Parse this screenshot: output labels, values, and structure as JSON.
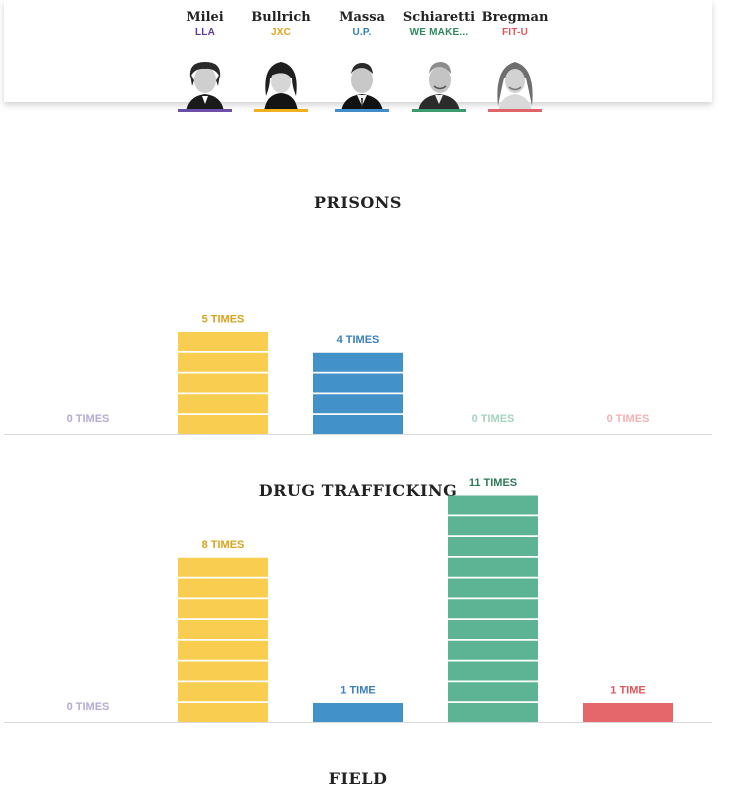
{
  "candidates": [
    {
      "name": "Milei",
      "party": "LLA",
      "color": "#6b4fa8",
      "portrait_icon": "milei-portrait-icon"
    },
    {
      "name": "Bullrich",
      "party": "JXC",
      "color": "#f2b01e",
      "portrait_icon": "bullrich-portrait-icon"
    },
    {
      "name": "Massa",
      "party": "U.P.",
      "color": "#3f8ecb",
      "portrait_icon": "massa-portrait-icon"
    },
    {
      "name": "Schiaretti",
      "party": "WE MAKE...",
      "color": "#3d9a6f",
      "portrait_icon": "schiaretti-portrait-icon"
    },
    {
      "name": "Bregman",
      "party": "FIT-U",
      "color": "#e0636a",
      "portrait_icon": "bregman-portrait-icon"
    }
  ],
  "sections": [
    {
      "title": "PRISONS"
    },
    {
      "title": "DRUG TRAFFICKING"
    },
    {
      "title": "FIELD"
    }
  ],
  "chart_data": [
    {
      "type": "bar",
      "title": "PRISONS",
      "categories": [
        "Milei",
        "Bullrich",
        "Massa",
        "Schiarretti",
        "Bregman"
      ],
      "values": [
        0,
        5,
        4,
        0,
        0
      ],
      "labels": [
        "0 TIMES",
        "5 TIMES",
        "4 TIMES",
        "0 TIMES",
        "0 TIMES"
      ],
      "colors": [
        "#6b4fa8",
        "#f9cd4f",
        "#4391c9",
        "#5db494",
        "#e5666b"
      ],
      "label_colors": [
        "#b6aad4",
        "#d9a21c",
        "#3a7fb8",
        "#a6d3bf",
        "#f1b2b4"
      ]
    },
    {
      "type": "bar",
      "title": "DRUG TRAFFICKING",
      "categories": [
        "Milei",
        "Bullrich",
        "Massa",
        "Schiarretti",
        "Bregman"
      ],
      "values": [
        0,
        8,
        1,
        11,
        1
      ],
      "labels": [
        "0 TIMES",
        "8 TIMES",
        "1 TIME",
        "11 TIMES",
        "1 TIME"
      ],
      "colors": [
        "#6b4fa8",
        "#f9cd4f",
        "#4391c9",
        "#5db494",
        "#e5666b"
      ],
      "label_colors": [
        "#b6aad4",
        "#d9a21c",
        "#3a7fb8",
        "#2f7a58",
        "#e0565c"
      ]
    }
  ]
}
